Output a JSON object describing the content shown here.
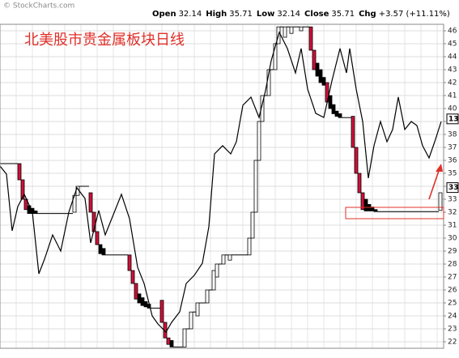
{
  "chart_data": {
    "type": "three-line-break",
    "title": "北美股市贵金属板块日线",
    "source": "© StockCharts.com",
    "quote": [
      {
        "label": "Open",
        "value": "32.14"
      },
      {
        "label": "High",
        "value": "35.71"
      },
      {
        "label": "Low",
        "value": "32.14"
      },
      {
        "label": "Close",
        "value": "35.71"
      },
      {
        "label": "Chg",
        "value": "+3.57 (+11.11%)"
      }
    ],
    "xlim": [
      0,
      137
    ],
    "ylim": [
      21.5,
      46.5
    ],
    "yticks": [
      22,
      23,
      24,
      25,
      26,
      27,
      28,
      29,
      30,
      31,
      32,
      33,
      34,
      35,
      36,
      37,
      38,
      39,
      40,
      41,
      42,
      43,
      44,
      45,
      46
    ],
    "grid": true,
    "colors": {
      "up": "#ffffff",
      "down": "#d0103a",
      "black": "#000000"
    },
    "bricks": [
      {
        "x": 6,
        "low": 34.5,
        "high": 35.75,
        "kind": "down"
      },
      {
        "x": 7,
        "low": 33,
        "high": 34.5,
        "kind": "down"
      },
      {
        "x": 8,
        "low": 32.2,
        "high": 33,
        "kind": "down"
      },
      {
        "x": 9,
        "low": 31.9,
        "high": 32.5,
        "kind": "black"
      },
      {
        "x": 10,
        "low": 31.9,
        "high": 32.3,
        "kind": "black"
      },
      {
        "x": 11,
        "low": 31.9,
        "high": 32.1,
        "kind": "black"
      },
      {
        "x": 23,
        "low": 32,
        "high": 33.3,
        "kind": "up"
      },
      {
        "x": 24,
        "low": 33.3,
        "high": 34,
        "kind": "up"
      },
      {
        "x": 28,
        "low": 32,
        "high": 33.5,
        "kind": "down"
      },
      {
        "x": 29,
        "low": 30.5,
        "high": 32,
        "kind": "down"
      },
      {
        "x": 30,
        "low": 29.5,
        "high": 30.5,
        "kind": "down"
      },
      {
        "x": 31,
        "low": 28.8,
        "high": 29.5,
        "kind": "black"
      },
      {
        "x": 32,
        "low": 28.7,
        "high": 29.2,
        "kind": "black"
      },
      {
        "x": 40,
        "low": 27.5,
        "high": 28.7,
        "kind": "down"
      },
      {
        "x": 41,
        "low": 26.5,
        "high": 27.5,
        "kind": "down"
      },
      {
        "x": 42,
        "low": 25.3,
        "high": 26.5,
        "kind": "down"
      },
      {
        "x": 43,
        "low": 25,
        "high": 25.7,
        "kind": "black"
      },
      {
        "x": 44,
        "low": 24.8,
        "high": 25.4,
        "kind": "black"
      },
      {
        "x": 45,
        "low": 24.7,
        "high": 25.1,
        "kind": "black"
      },
      {
        "x": 46,
        "low": 24.6,
        "high": 24.9,
        "kind": "black"
      },
      {
        "x": 50,
        "low": 23.5,
        "high": 25.2,
        "kind": "down"
      },
      {
        "x": 51,
        "low": 22.3,
        "high": 23.5,
        "kind": "down"
      },
      {
        "x": 52,
        "low": 21.8,
        "high": 22.3,
        "kind": "down"
      },
      {
        "x": 53,
        "low": 21.6,
        "high": 22.1,
        "kind": "black"
      },
      {
        "x": 57,
        "low": 21.6,
        "high": 23,
        "kind": "up"
      },
      {
        "x": 59,
        "low": 23,
        "high": 24.3,
        "kind": "up"
      },
      {
        "x": 61,
        "low": 24,
        "high": 25,
        "kind": "up"
      },
      {
        "x": 64,
        "low": 25,
        "high": 26,
        "kind": "up"
      },
      {
        "x": 66,
        "low": 26,
        "high": 27.5,
        "kind": "up"
      },
      {
        "x": 67,
        "low": 27,
        "high": 28,
        "kind": "up"
      },
      {
        "x": 69,
        "low": 28,
        "high": 28.7,
        "kind": "up"
      },
      {
        "x": 71,
        "low": 28.3,
        "high": 28.7,
        "kind": "up"
      },
      {
        "x": 77,
        "low": 28.7,
        "high": 30,
        "kind": "up"
      },
      {
        "x": 78,
        "low": 30,
        "high": 32,
        "kind": "up"
      },
      {
        "x": 79,
        "low": 32,
        "high": 36,
        "kind": "up"
      },
      {
        "x": 80,
        "low": 36,
        "high": 39,
        "kind": "up"
      },
      {
        "x": 81,
        "low": 39,
        "high": 41,
        "kind": "up"
      },
      {
        "x": 83,
        "low": 41,
        "high": 43,
        "kind": "up"
      },
      {
        "x": 85,
        "low": 43,
        "high": 45,
        "kind": "up"
      },
      {
        "x": 86,
        "low": 45,
        "high": 46.3,
        "kind": "up"
      },
      {
        "x": 88,
        "low": 45.5,
        "high": 46.3,
        "kind": "up"
      },
      {
        "x": 90,
        "low": 45.8,
        "high": 46.3,
        "kind": "up"
      },
      {
        "x": 93,
        "low": 46,
        "high": 46.3,
        "kind": "up"
      },
      {
        "x": 96,
        "low": 44.5,
        "high": 46.3,
        "kind": "down"
      },
      {
        "x": 97,
        "low": 43,
        "high": 44.5,
        "kind": "down"
      },
      {
        "x": 98,
        "low": 42.5,
        "high": 43.5,
        "kind": "black"
      },
      {
        "x": 99,
        "low": 42,
        "high": 43,
        "kind": "black"
      },
      {
        "x": 100,
        "low": 41.8,
        "high": 42.4,
        "kind": "black"
      },
      {
        "x": 101,
        "low": 40.5,
        "high": 42,
        "kind": "down"
      },
      {
        "x": 102,
        "low": 40,
        "high": 41,
        "kind": "black"
      },
      {
        "x": 103,
        "low": 39.6,
        "high": 40.3,
        "kind": "black"
      },
      {
        "x": 104,
        "low": 39.4,
        "high": 39.8,
        "kind": "black"
      },
      {
        "x": 105,
        "low": 39.3,
        "high": 39.6,
        "kind": "black"
      },
      {
        "x": 109,
        "low": 37,
        "high": 39.4,
        "kind": "down"
      },
      {
        "x": 110,
        "low": 35,
        "high": 37,
        "kind": "down"
      },
      {
        "x": 111,
        "low": 33.5,
        "high": 35,
        "kind": "down"
      },
      {
        "x": 112,
        "low": 32.2,
        "high": 33.5,
        "kind": "down"
      },
      {
        "x": 113,
        "low": 32.1,
        "high": 33,
        "kind": "black"
      },
      {
        "x": 114,
        "low": 32.1,
        "high": 32.6,
        "kind": "black"
      },
      {
        "x": 115,
        "low": 32.1,
        "high": 32.4,
        "kind": "black"
      },
      {
        "x": 116,
        "low": 32.05,
        "high": 32.2,
        "kind": "black"
      },
      {
        "x": 136,
        "low": 32.14,
        "high": 33.5,
        "kind": "up"
      }
    ],
    "line": {
      "color": "#000000",
      "x": [
        0,
        2,
        3.75,
        5.5,
        7.5,
        10,
        12,
        13.75,
        16.25,
        18.75,
        21.25,
        23.75,
        26.25,
        28,
        30.5,
        32.5,
        35,
        37.5,
        40,
        42.5,
        44.5,
        47,
        48.75,
        51.25,
        53,
        55.5,
        57.5,
        60,
        62.5,
        64.5,
        66.25,
        68.75,
        71.25,
        73,
        75,
        77.5,
        80,
        82,
        83.75,
        86.25,
        88.75,
        91.25,
        93,
        95,
        97.5,
        100,
        102.5,
        105,
        107,
        108,
        110,
        112,
        113.75,
        115.5,
        117.5,
        119.5,
        121.25,
        123,
        125,
        127,
        128.75,
        130.5,
        132.5,
        134.25,
        136.25
      ],
      "values": [
        35.56,
        34.94,
        30.56,
        32.44,
        33.38,
        32.0,
        27.25,
        28.38,
        30.25,
        29.0,
        32.0,
        33.88,
        33.06,
        29.63,
        32.13,
        30.25,
        31.81,
        33.38,
        31.5,
        27.75,
        26.5,
        24.0,
        23.38,
        22.75,
        23.5,
        24.31,
        26.5,
        27.13,
        28.06,
        30.88,
        36.5,
        37.13,
        36.5,
        37.44,
        40.25,
        40.88,
        39.31,
        41.38,
        43.69,
        45.88,
        44.63,
        42.75,
        44.63,
        41.5,
        39.63,
        39.31,
        42.13,
        44.63,
        42.75,
        44.63,
        41.5,
        39.0,
        34.63,
        37.13,
        39.0,
        37.44,
        38.38,
        40.88,
        38.38,
        39.0,
        38.69,
        37.13,
        36.19,
        37.44,
        39.0
      ]
    },
    "price_labels": [
      {
        "text": "13",
        "y": 39.2
      },
      {
        "text": "33",
        "y": 33.9
      }
    ]
  }
}
